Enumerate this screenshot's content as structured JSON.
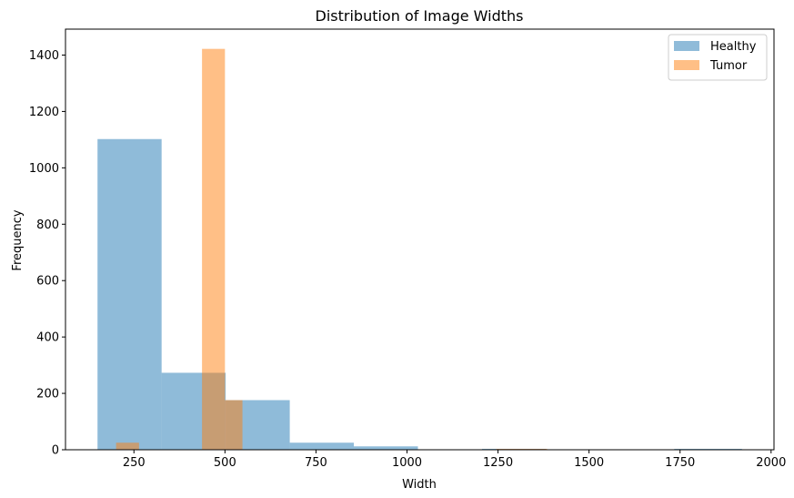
{
  "chart_data": {
    "type": "histogram",
    "title": "Distribution of Image Widths",
    "xlabel": "Width",
    "ylabel": "Frequency",
    "xlim": [
      62,
      2008
    ],
    "ylim": [
      0,
      1492
    ],
    "xticks": [
      250,
      500,
      750,
      1000,
      1250,
      1500,
      1750,
      2000
    ],
    "yticks": [
      0,
      200,
      400,
      600,
      800,
      1000,
      1200,
      1400
    ],
    "grid": false,
    "legend_position": "top-right",
    "series": [
      {
        "name": "Healthy",
        "color": "#1f77b4",
        "alpha": 0.5,
        "bins": [
          {
            "x0": 150,
            "x1": 326,
            "count": 1102
          },
          {
            "x0": 326,
            "x1": 502,
            "count": 273
          },
          {
            "x0": 502,
            "x1": 678,
            "count": 176
          },
          {
            "x0": 678,
            "x1": 854,
            "count": 25
          },
          {
            "x0": 854,
            "x1": 1030,
            "count": 12
          },
          {
            "x0": 1030,
            "x1": 1206,
            "count": 0
          },
          {
            "x0": 1206,
            "x1": 1382,
            "count": 2
          },
          {
            "x0": 1382,
            "x1": 1558,
            "count": 0
          },
          {
            "x0": 1558,
            "x1": 1734,
            "count": 0
          },
          {
            "x0": 1734,
            "x1": 1920,
            "count": 2
          }
        ]
      },
      {
        "name": "Tumor",
        "color": "#ff7f0e",
        "alpha": 0.5,
        "bins": [
          {
            "x0": 201,
            "x1": 264,
            "count": 25
          },
          {
            "x0": 264,
            "x1": 327,
            "count": 0
          },
          {
            "x0": 327,
            "x1": 390,
            "count": 0
          },
          {
            "x0": 390,
            "x1": 437,
            "count": 0
          },
          {
            "x0": 437,
            "x1": 500,
            "count": 1422
          },
          {
            "x0": 500,
            "x1": 548,
            "count": 176
          },
          {
            "x0": 548,
            "x1": 1245,
            "count": 0
          },
          {
            "x0": 1245,
            "x1": 1385,
            "count": 2
          }
        ]
      }
    ]
  }
}
